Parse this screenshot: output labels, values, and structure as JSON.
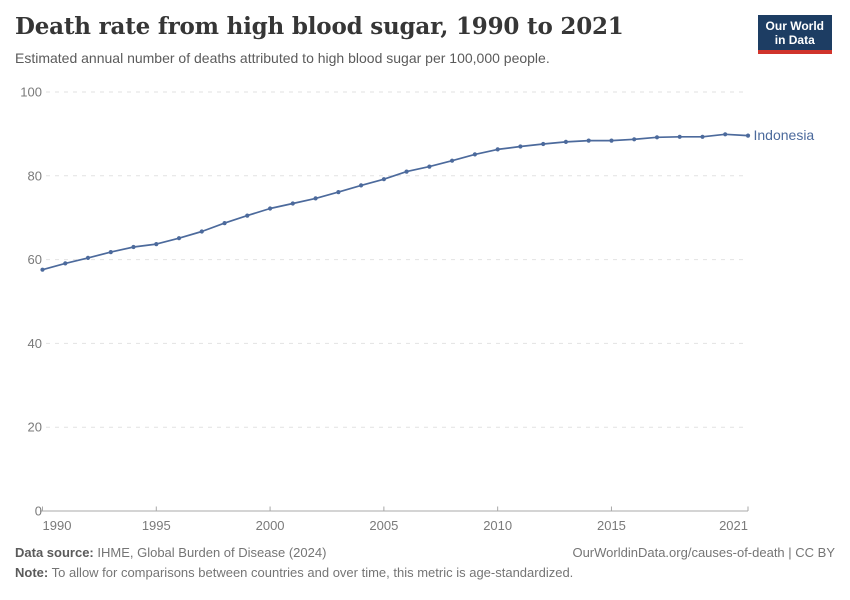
{
  "header": {
    "title": "Death rate from high blood sugar, 1990 to 2021",
    "subtitle": "Estimated annual number of deaths attributed to high blood sugar per 100,000 people.",
    "logo": {
      "line1": "Our World",
      "line2": "in Data",
      "bg_color": "#1d3d63",
      "bar_color": "#d0342c"
    }
  },
  "chart_data": {
    "type": "line",
    "title": "Death rate from high blood sugar, 1990 to 2021",
    "subtitle": "Estimated annual number of deaths attributed to high blood sugar per 100,000 people.",
    "xlabel": "",
    "ylabel": "",
    "x": [
      1990,
      1991,
      1992,
      1993,
      1994,
      1995,
      1996,
      1997,
      1998,
      1999,
      2000,
      2001,
      2002,
      2003,
      2004,
      2005,
      2006,
      2007,
      2008,
      2009,
      2010,
      2011,
      2012,
      2013,
      2014,
      2015,
      2016,
      2017,
      2018,
      2019,
      2020,
      2021
    ],
    "series": [
      {
        "name": "Indonesia",
        "color": "#4c6a9c",
        "values": [
          57.6,
          59.1,
          60.4,
          61.8,
          63.0,
          63.7,
          65.1,
          66.7,
          68.7,
          70.5,
          72.2,
          73.4,
          74.6,
          76.1,
          77.7,
          79.2,
          81.0,
          82.2,
          83.6,
          85.1,
          86.3,
          87.0,
          87.6,
          88.1,
          88.4,
          88.4,
          88.7,
          89.2,
          89.3,
          89.3,
          89.9,
          89.6
        ]
      }
    ],
    "xlim": [
      1990,
      2021
    ],
    "ylim": [
      0,
      100
    ],
    "x_ticks": [
      1990,
      1995,
      2000,
      2005,
      2010,
      2015,
      2021
    ],
    "y_ticks": [
      0,
      20,
      40,
      60,
      80,
      100
    ],
    "grid": "horizontal-dashed",
    "legend_position": "line-end-label",
    "axis_color": "#a8a8a8",
    "grid_color": "#e2e2e2",
    "tick_label_color": "#7a7a7a"
  },
  "footer": {
    "source_label": "Data source:",
    "source_text": " IHME, Global Burden of Disease (2024)",
    "credit": "OurWorldinData.org/causes-of-death | CC BY",
    "note_label": "Note:",
    "note_text": " To allow for comparisons between countries and over time, this metric is age-standardized."
  }
}
